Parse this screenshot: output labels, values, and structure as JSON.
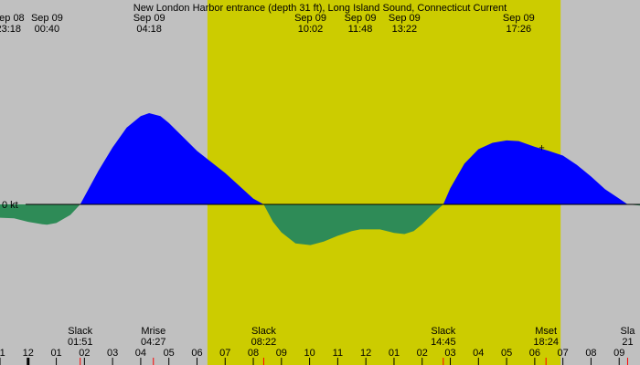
{
  "chart_data": {
    "type": "area",
    "title": "New London Harbor entrance (depth 31 ft), Long Island Sound, Connecticut Current",
    "unit": "kt",
    "zero_label": "0 kt",
    "x_unit": "hour",
    "x_start": -1.0,
    "x_end": 21.74,
    "y_range": [
      -1.8,
      1.8
    ],
    "colors": {
      "background": "#c0c0c0",
      "daylight": "#cccc00",
      "flood": "#0000ff",
      "ebb": "#2e8b57",
      "axis": "#000000",
      "tick_mark": "#ff0000"
    },
    "daylight": [
      6.37,
      18.92
    ],
    "top_labels": [
      {
        "date": "Sep 08",
        "time": "23:18",
        "hour": -0.7
      },
      {
        "date": "Sep 09",
        "time": "00:40",
        "hour": 0.67
      },
      {
        "date": "Sep 09",
        "time": "04:18",
        "hour": 4.3
      },
      {
        "date": "Sep 09",
        "time": "10:02",
        "hour": 10.03
      },
      {
        "date": "Sep 09",
        "time": "11:48",
        "hour": 11.8
      },
      {
        "date": "Sep 09",
        "time": "13:22",
        "hour": 13.37
      },
      {
        "date": "Sep 09",
        "time": "17:26",
        "hour": 17.43
      }
    ],
    "events": [
      {
        "name": "Slack",
        "time": "01:51",
        "hour": 1.85
      },
      {
        "name": "Mrise",
        "time": "04:27",
        "hour": 4.45
      },
      {
        "name": "Slack",
        "time": "08:22",
        "hour": 8.37
      },
      {
        "name": "Slack",
        "time": "14:45",
        "hour": 14.75
      },
      {
        "name": "Mset",
        "time": "18:24",
        "hour": 18.4
      },
      {
        "name": "Sla",
        "time": "21",
        "hour": 21.3
      }
    ],
    "series": [
      {
        "x": [
          -1.0,
          -0.5,
          0.0,
          0.5,
          0.67,
          1.0,
          1.5,
          1.85,
          2.5,
          3.0,
          3.5,
          4.0,
          4.3,
          4.7,
          5.0,
          6.0,
          7.0,
          7.5,
          8.0,
          8.37,
          8.7,
          9.0,
          9.5,
          10.03,
          10.5,
          11.0,
          11.5,
          11.8,
          12.5,
          13.0,
          13.37,
          13.7,
          14.0,
          14.4,
          14.75,
          15.0,
          15.5,
          16.0,
          16.5,
          17.0,
          17.43,
          18.0,
          18.5,
          19.0,
          19.5,
          20.0,
          20.5,
          21.0,
          21.3,
          21.74
        ],
        "y": [
          -0.23,
          -0.24,
          -0.3,
          -0.34,
          -0.35,
          -0.32,
          -0.18,
          0.0,
          0.58,
          0.98,
          1.32,
          1.52,
          1.57,
          1.52,
          1.4,
          0.92,
          0.54,
          0.32,
          0.1,
          0.0,
          -0.3,
          -0.48,
          -0.67,
          -0.7,
          -0.64,
          -0.54,
          -0.46,
          -0.43,
          -0.43,
          -0.49,
          -0.51,
          -0.46,
          -0.34,
          -0.15,
          0.0,
          0.28,
          0.7,
          0.95,
          1.06,
          1.1,
          1.09,
          0.99,
          0.92,
          0.84,
          0.68,
          0.48,
          0.26,
          0.1,
          0.0,
          -0.02
        ]
      }
    ],
    "marker": {
      "symbol": "+",
      "hour": 18.25,
      "value": 0.98
    },
    "x_ticks": [
      {
        "label": "11",
        "hour": -1
      },
      {
        "label": "12",
        "hour": 0
      },
      {
        "label": "01",
        "hour": 1
      },
      {
        "label": "02",
        "hour": 2
      },
      {
        "label": "03",
        "hour": 3
      },
      {
        "label": "04",
        "hour": 4
      },
      {
        "label": "05",
        "hour": 5
      },
      {
        "label": "06",
        "hour": 6
      },
      {
        "label": "07",
        "hour": 7
      },
      {
        "label": "08",
        "hour": 8
      },
      {
        "label": "09",
        "hour": 9
      },
      {
        "label": "10",
        "hour": 10
      },
      {
        "label": "11",
        "hour": 11
      },
      {
        "label": "12",
        "hour": 12
      },
      {
        "label": "01",
        "hour": 13
      },
      {
        "label": "02",
        "hour": 14
      },
      {
        "label": "03",
        "hour": 15
      },
      {
        "label": "04",
        "hour": 16
      },
      {
        "label": "05",
        "hour": 17
      },
      {
        "label": "06",
        "hour": 18
      },
      {
        "label": "07",
        "hour": 19
      },
      {
        "label": "08",
        "hour": 20
      },
      {
        "label": "09",
        "hour": 21
      }
    ]
  }
}
